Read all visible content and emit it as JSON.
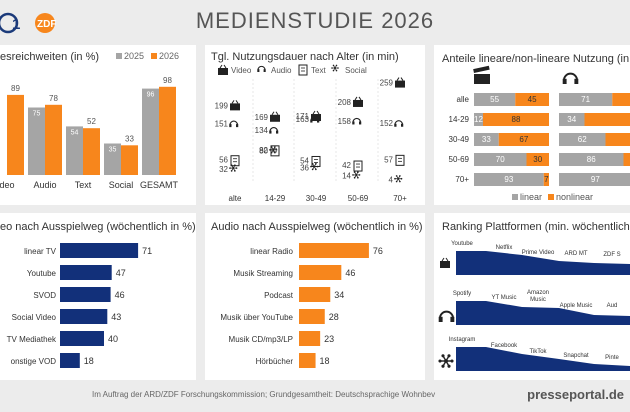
{
  "header": {
    "title": "MEDIENSTUDIE 2026",
    "logo_zdf": "ZDF"
  },
  "panels": {
    "reach": {
      "title": "esreichweiten (in %)",
      "legend": [
        "2025",
        "2026"
      ]
    },
    "duration": {
      "title": "Tgl. Nutzungsdauer nach Alter (in min)",
      "legend": [
        "Video",
        "Audio",
        "Text",
        "Social"
      ]
    },
    "linear": {
      "title": "Anteile lineare/non-lineare Nutzung (in %)",
      "legend": [
        "linear",
        "nonlinear"
      ]
    },
    "video_channels": {
      "title": "eo nach Ausspielweg (wöchentlich in %)"
    },
    "audio_channels": {
      "title": "Audio nach Ausspielweg (wöchentlich in %)"
    },
    "ranking": {
      "title": "Ranking Plattformen (min. wöchentlich in %)"
    }
  },
  "footer": "Im Auftrag der ARD/ZDF Forschungskommission; Grundgesamtheit: Deutschsprachige Wohnbev",
  "watermark": "presseportal.de",
  "colors": {
    "orange": "#f7861c",
    "gray": "#a5a5a5",
    "navy": "#12307a",
    "light_gray": "#c8c8c8"
  },
  "chart_data": [
    {
      "type": "bar",
      "title": "esreichweiten (in %)",
      "categories": [
        "deo",
        "Audio",
        "Text",
        "Social",
        "GESAMT"
      ],
      "series": [
        {
          "name": "2025",
          "values": [
            null,
            75,
            54,
            35,
            96
          ]
        },
        {
          "name": "2026",
          "values": [
            89,
            78,
            52,
            33,
            98
          ]
        }
      ],
      "ylim": [
        0,
        100
      ]
    },
    {
      "type": "scatter",
      "title": "Tgl. Nutzungsdauer nach Alter (in min)",
      "categories": [
        "alte",
        "14-29",
        "30-49",
        "50-69",
        "70+"
      ],
      "series": [
        {
          "name": "Video",
          "values": [
            199,
            169,
            171,
            208,
            259
          ]
        },
        {
          "name": "Audio",
          "values": [
            151,
            134,
            163,
            158,
            152
          ]
        },
        {
          "name": "Text",
          "values": [
            56,
            82,
            54,
            42,
            57
          ]
        },
        {
          "name": "Social",
          "values": [
            32,
            80,
            36,
            14,
            4
          ]
        }
      ]
    },
    {
      "type": "bar",
      "title": "Anteile lineare/non-lineare Nutzung (in %)",
      "categories": [
        "alle",
        "14-29",
        "30-49",
        "50-69",
        "70+"
      ],
      "series": [
        {
          "name": "linear",
          "values": [
            55,
            12,
            33,
            70,
            93
          ]
        },
        {
          "name": "nonlinear",
          "values": [
            45,
            88,
            67,
            30,
            7
          ]
        }
      ],
      "audio_linear": [
        71,
        34,
        62,
        86,
        97
      ]
    },
    {
      "type": "bar",
      "title": "eo nach Ausspielweg (wöchentlich in %)",
      "categories": [
        "linear TV",
        "Youtube",
        "SVOD",
        "Social Video",
        "TV Mediathek",
        "onstige VOD"
      ],
      "values": [
        71,
        47,
        46,
        43,
        40,
        18
      ]
    },
    {
      "type": "bar",
      "title": "Audio nach Ausspielweg (wöchentlich in %)",
      "categories": [
        "linear Radio",
        "Musik Streaming",
        "Podcast",
        "Musik über YouTube",
        "Musik CD/mp3/LP",
        "Hörbücher"
      ],
      "values": [
        76,
        46,
        34,
        28,
        23,
        18
      ]
    },
    {
      "type": "area",
      "title": "Ranking Plattformen (min. wöchentlich in %)",
      "rows": [
        {
          "icon": "tv-icon",
          "labels": [
            "Youtube",
            "Netflix",
            "Prime Video",
            "ARD MT",
            "ZDF S"
          ]
        },
        {
          "icon": "headphones-icon",
          "labels": [
            "Spotify",
            "YT Music",
            "Amazon Music",
            "Apple Music",
            "Aud"
          ]
        },
        {
          "icon": "social-icon",
          "labels": [
            "Instagram",
            "Facebook",
            "TikTok",
            "Snapchat",
            "Pinte"
          ]
        }
      ]
    }
  ]
}
